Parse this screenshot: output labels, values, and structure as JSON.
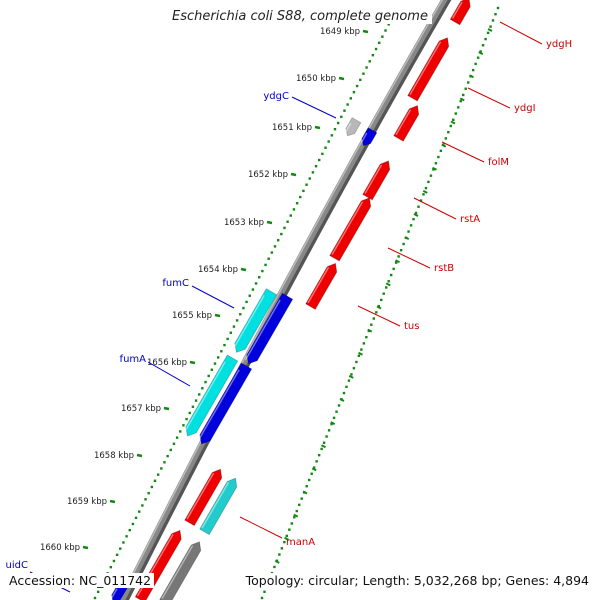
{
  "title": "Escherichia coli S88, complete genome",
  "footer": {
    "accession": "Accession: NC_011742",
    "info": "Topology: circular; Length: 5,032,268 bp; Genes: 4,894"
  },
  "colors": {
    "backbone": "#888888",
    "forward_cds": "#ee0000",
    "reverse_cds": "#0000dd",
    "cyan_feature": "#00e0e0",
    "grey_feature": "#b8b8b8",
    "tick_green": "#118811",
    "label_red": "#cc0000",
    "label_blue": "#0000cc"
  },
  "ticks": [
    {
      "label": "1649 kbp"
    },
    {
      "label": "1650 kbp"
    },
    {
      "label": "1651 kbp"
    },
    {
      "label": "1652 kbp"
    },
    {
      "label": "1653 kbp"
    },
    {
      "label": "1654 kbp"
    },
    {
      "label": "1655 kbp"
    },
    {
      "label": "1656 kbp"
    },
    {
      "label": "1657 kbp"
    },
    {
      "label": "1658 kbp"
    },
    {
      "label": "1659 kbp"
    },
    {
      "label": "1660 kbp"
    }
  ],
  "gene_labels": [
    {
      "name": "ydgH",
      "strand": "forward"
    },
    {
      "name": "ydgI",
      "strand": "forward"
    },
    {
      "name": "folM",
      "strand": "forward"
    },
    {
      "name": "rstA",
      "strand": "forward"
    },
    {
      "name": "rstB",
      "strand": "forward"
    },
    {
      "name": "tus",
      "strand": "forward"
    },
    {
      "name": "manA",
      "strand": "forward"
    },
    {
      "name": "ydgC",
      "strand": "reverse"
    },
    {
      "name": "fumC",
      "strand": "reverse"
    },
    {
      "name": "fumA",
      "strand": "reverse"
    },
    {
      "name": "uidC",
      "strand": "reverse"
    }
  ]
}
